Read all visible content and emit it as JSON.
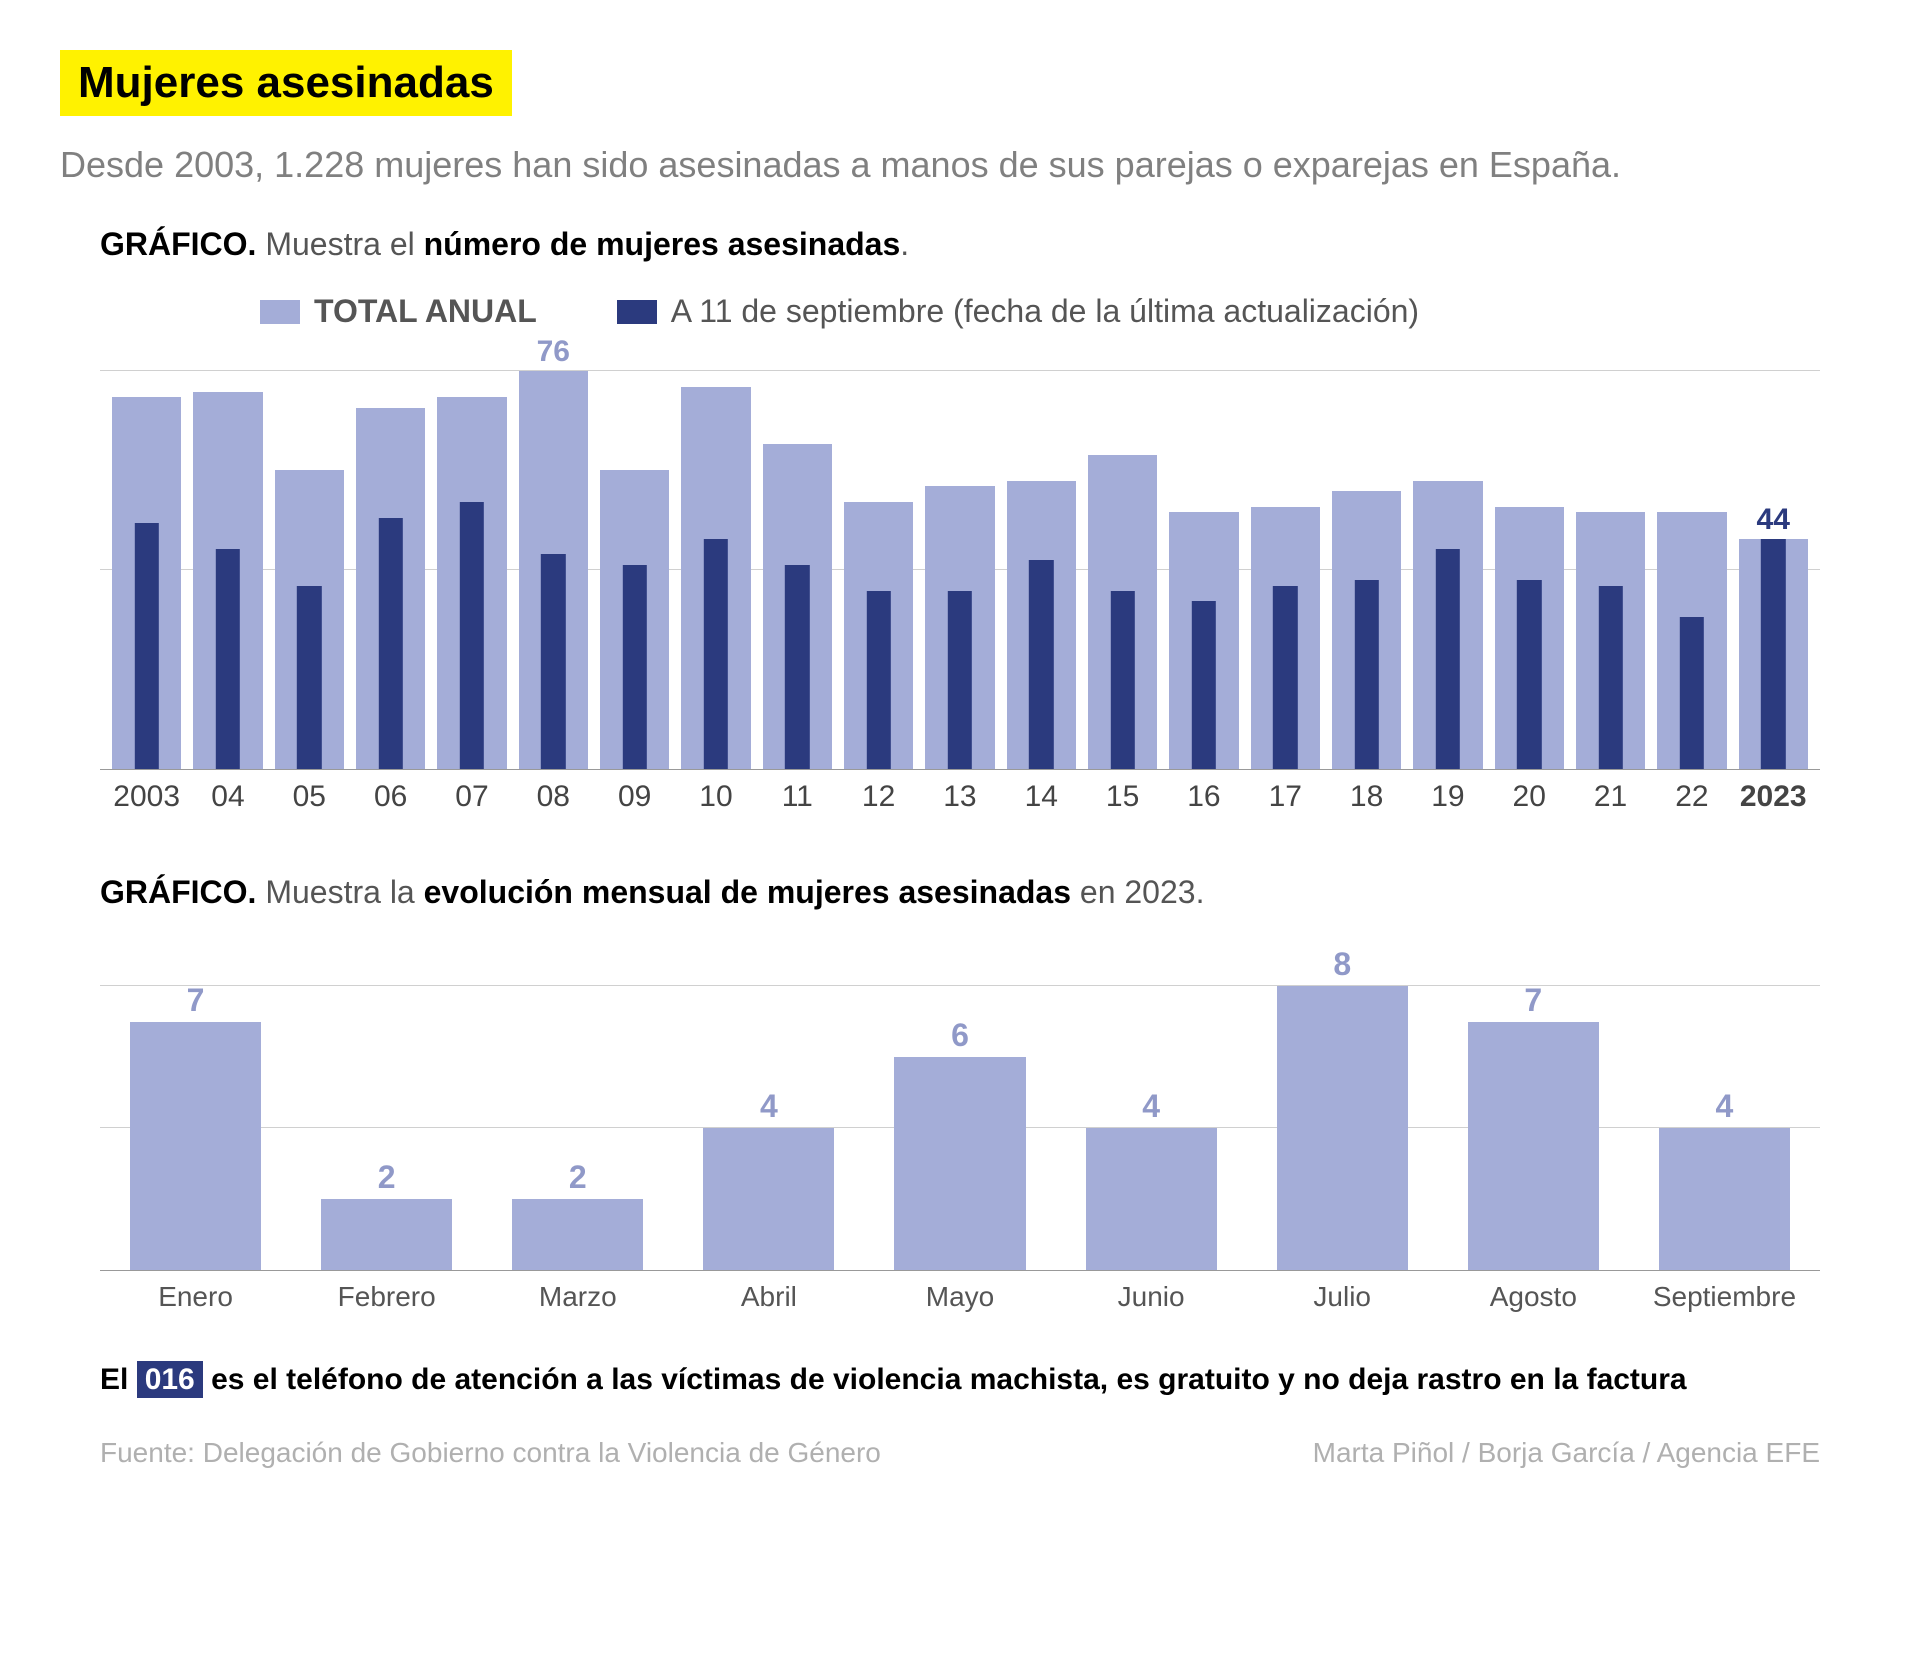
{
  "title": "Mujeres asesinadas",
  "subtitle": "Desde 2003, 1.228 mujeres han sido asesinadas a manos de sus parejas o exparejas en España.",
  "chart1": {
    "label_prefix": "GRÁFICO.",
    "label_mid": " Muestra el ",
    "label_bold": "número de mujeres asesinadas",
    "label_end": ".",
    "legend": {
      "s1": {
        "text": "TOTAL ANUAL",
        "color": "#a4add8"
      },
      "s2": {
        "text": "A 11 de septiembre (fecha de la última actualización)",
        "color": "#2b3a7e"
      }
    },
    "ymax": 80,
    "gridlines": [
      38,
      76
    ],
    "max_highlight": {
      "year": "08",
      "value": 76,
      "color": "#9099c8"
    },
    "last_highlight": {
      "year": "2023",
      "value": 44,
      "color": "#2b3a7e"
    },
    "years": [
      {
        "x": "2003",
        "total": 71,
        "partial": 47,
        "bold": false
      },
      {
        "x": "04",
        "total": 72,
        "partial": 42,
        "bold": false
      },
      {
        "x": "05",
        "total": 57,
        "partial": 35,
        "bold": false
      },
      {
        "x": "06",
        "total": 69,
        "partial": 48,
        "bold": false
      },
      {
        "x": "07",
        "total": 71,
        "partial": 51,
        "bold": false
      },
      {
        "x": "08",
        "total": 76,
        "partial": 41,
        "bold": false
      },
      {
        "x": "09",
        "total": 57,
        "partial": 39,
        "bold": false
      },
      {
        "x": "10",
        "total": 73,
        "partial": 44,
        "bold": false
      },
      {
        "x": "11",
        "total": 62,
        "partial": 39,
        "bold": false
      },
      {
        "x": "12",
        "total": 51,
        "partial": 34,
        "bold": false
      },
      {
        "x": "13",
        "total": 54,
        "partial": 34,
        "bold": false
      },
      {
        "x": "14",
        "total": 55,
        "partial": 40,
        "bold": false
      },
      {
        "x": "15",
        "total": 60,
        "partial": 34,
        "bold": false
      },
      {
        "x": "16",
        "total": 49,
        "partial": 32,
        "bold": false
      },
      {
        "x": "17",
        "total": 50,
        "partial": 35,
        "bold": false
      },
      {
        "x": "18",
        "total": 53,
        "partial": 36,
        "bold": false
      },
      {
        "x": "19",
        "total": 55,
        "partial": 42,
        "bold": false
      },
      {
        "x": "20",
        "total": 50,
        "partial": 36,
        "bold": false
      },
      {
        "x": "21",
        "total": 49,
        "partial": 35,
        "bold": false
      },
      {
        "x": "22",
        "total": 49,
        "partial": 29,
        "bold": false
      },
      {
        "x": "2023",
        "total": 44,
        "partial": 44,
        "bold": true
      }
    ]
  },
  "chart2": {
    "label_prefix": "GRÁFICO.",
    "label_mid": " Muestra la ",
    "label_bold": "evolución mensual de mujeres asesinadas",
    "label_end": " en 2023.",
    "ymax": 9,
    "gridlines": [
      4,
      8
    ],
    "bar_color": "#a4add8",
    "label_color": "#9099c8",
    "months": [
      {
        "x": "Enero",
        "v": 7
      },
      {
        "x": "Febrero",
        "v": 2
      },
      {
        "x": "Marzo",
        "v": 2
      },
      {
        "x": "Abril",
        "v": 4
      },
      {
        "x": "Mayo",
        "v": 6
      },
      {
        "x": "Junio",
        "v": 4
      },
      {
        "x": "Julio",
        "v": 8
      },
      {
        "x": "Agosto",
        "v": 7
      },
      {
        "x": "Septiembre",
        "v": 4
      }
    ]
  },
  "note": {
    "pre": "El ",
    "badge": "016",
    "post": " es el teléfono de atención a las víctimas de violencia machista, es gratuito y no deja rastro en la factura"
  },
  "footer": {
    "source": "Fuente: Delegación de Gobierno contra la Violencia de Género",
    "credits": "Marta Piñol / Borja García / Agencia EFE"
  }
}
